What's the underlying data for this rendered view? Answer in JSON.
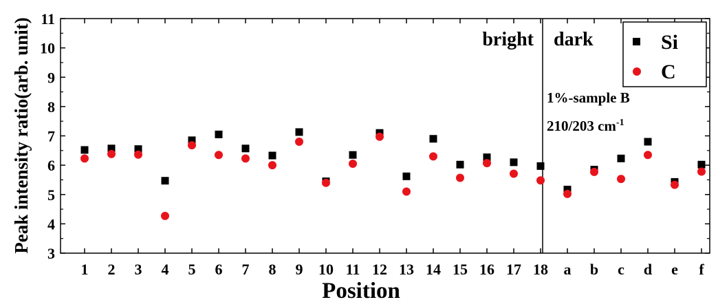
{
  "chart_data": {
    "type": "scatter",
    "xlabel": "Position",
    "ylabel": "Peak intensity ratio(arb. unit)",
    "ylim": [
      3,
      11
    ],
    "yticks": [
      3,
      4,
      5,
      6,
      7,
      8,
      9,
      10,
      11
    ],
    "categories": [
      "1",
      "2",
      "3",
      "4",
      "5",
      "6",
      "7",
      "8",
      "9",
      "10",
      "11",
      "12",
      "13",
      "14",
      "15",
      "16",
      "17",
      "18",
      "a",
      "b",
      "c",
      "d",
      "e",
      "f"
    ],
    "region_labels": {
      "left": "bright",
      "right": "dark"
    },
    "annotation": {
      "line1": "1%-sample B",
      "line2_main": "210/203 cm",
      "line2_sup": "-1"
    },
    "legend_position": "top-right",
    "series": [
      {
        "name": "Si",
        "marker": "square",
        "color": "#000000",
        "values": [
          6.52,
          6.57,
          6.55,
          5.47,
          6.85,
          7.05,
          6.57,
          6.33,
          7.13,
          5.45,
          6.35,
          7.1,
          5.62,
          6.9,
          6.02,
          6.27,
          6.1,
          5.97,
          5.17,
          5.85,
          6.23,
          6.8,
          5.43,
          6.02
        ]
      },
      {
        "name": "C",
        "marker": "circle",
        "color": "#e8141c",
        "values": [
          6.23,
          6.38,
          6.36,
          4.27,
          6.68,
          6.35,
          6.23,
          6.0,
          6.8,
          5.4,
          6.05,
          6.97,
          5.1,
          6.3,
          5.57,
          6.07,
          5.71,
          5.48,
          5.02,
          5.77,
          5.53,
          6.35,
          5.33,
          5.78
        ]
      }
    ]
  }
}
